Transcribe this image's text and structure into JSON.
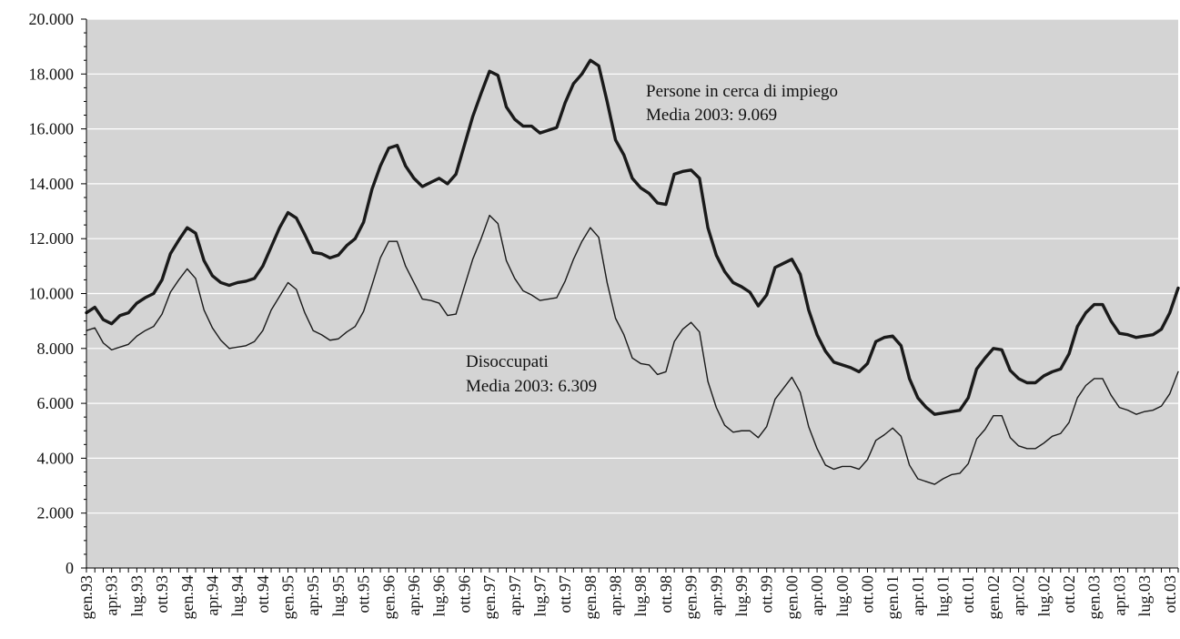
{
  "chart_data": {
    "type": "line",
    "title": "",
    "xlabel": "",
    "ylabel": "",
    "ylim": [
      0,
      20000
    ],
    "yticks": [
      0,
      2000,
      4000,
      6000,
      8000,
      10000,
      12000,
      14000,
      16000,
      18000,
      20000
    ],
    "ytick_labels": [
      "0",
      "2.000",
      "4.000",
      "6.000",
      "8.000",
      "10.000",
      "12.000",
      "14.000",
      "16.000",
      "18.000",
      "20.000"
    ],
    "grid": "horizontal",
    "background": "#d4d4d4",
    "x_tick_labels": [
      "gen.93",
      "apr.93",
      "lug.93",
      "ott.93",
      "gen.94",
      "apr.94",
      "lug.94",
      "ott.94",
      "gen.95",
      "apr.95",
      "lug.95",
      "ott.95",
      "gen.96",
      "apr.96",
      "lug.96",
      "ott.96",
      "gen.97",
      "apr.97",
      "lug.97",
      "ott.97",
      "gen.98",
      "apr.98",
      "lug.98",
      "ott.98",
      "gen.99",
      "apr.99",
      "lug.99",
      "ott.99",
      "gen.00",
      "apr.00",
      "lug.00",
      "ott.00",
      "gen.01",
      "apr.01",
      "lug.01",
      "ott.01",
      "gen.02",
      "apr.02",
      "lug.02",
      "ott.02",
      "gen.03",
      "apr.03",
      "lug.03",
      "ott.03"
    ],
    "series": [
      {
        "color": "#1a1a1a",
        "values": [
          9300,
          9500,
          9050,
          8900,
          9200,
          9300,
          9650,
          9850,
          10000,
          10500,
          11450,
          11950,
          12400,
          12200,
          11200,
          10650,
          10400,
          10300,
          10400,
          10450,
          10550,
          11000,
          11700,
          12400,
          12950,
          12750,
          12150,
          11500,
          11450,
          11300,
          11400,
          11750,
          12000,
          12600,
          13800,
          14650,
          15300,
          15400,
          14650,
          14200,
          13900,
          14050,
          14200,
          14000,
          14350,
          15400,
          16450,
          17300,
          18100,
          17950,
          16800,
          16350,
          16100,
          16100,
          15850,
          15950,
          16050,
          16950,
          17650,
          18000,
          18500,
          18300,
          17000,
          15600,
          15050,
          14200,
          13850,
          13650,
          13300,
          13250,
          14350,
          14450,
          14500,
          14200,
          12400,
          11400,
          10800,
          10400,
          10250,
          10050,
          9550,
          9950,
          10950,
          11100,
          11250,
          10700,
          9400,
          8500,
          7900,
          7500,
          7400,
          7300,
          7150,
          7450,
          8250,
          8400,
          8450,
          8100,
          6900,
          6200,
          5850,
          5600,
          5650,
          5700,
          5750,
          6200,
          7250,
          7650,
          8000,
          7950,
          7200,
          6900,
          6750,
          6750,
          7000,
          7150,
          7250,
          7800,
          8800,
          9300,
          9600,
          9600,
          9000,
          8550,
          8500,
          8400,
          8450,
          8500,
          8700,
          9300,
          10200
        ]
      },
      {
        "color": "#1a1a1a",
        "values": [
          8650,
          8750,
          8200,
          7950,
          8050,
          8150,
          8450,
          8650,
          8800,
          9250,
          10050,
          10500,
          10900,
          10550,
          9400,
          8750,
          8300,
          8000,
          8050,
          8100,
          8250,
          8650,
          9400,
          9900,
          10400,
          10150,
          9300,
          8650,
          8500,
          8300,
          8350,
          8600,
          8800,
          9350,
          10300,
          11300,
          11900,
          11900,
          11000,
          10400,
          9800,
          9750,
          9650,
          9200,
          9250,
          10250,
          11250,
          12000,
          12850,
          12550,
          11200,
          10550,
          10100,
          9950,
          9750,
          9800,
          9850,
          10450,
          11250,
          11900,
          12400,
          12050,
          10400,
          9100,
          8500,
          7650,
          7450,
          7400,
          7050,
          7150,
          8250,
          8700,
          8950,
          8600,
          6800,
          5850,
          5200,
          4950,
          5000,
          5000,
          4750,
          5150,
          6150,
          6550,
          6950,
          6400,
          5150,
          4350,
          3750,
          3600,
          3700,
          3700,
          3600,
          3950,
          4650,
          4850,
          5100,
          4800,
          3750,
          3250,
          3150,
          3050,
          3250,
          3400,
          3450,
          3800,
          4700,
          5050,
          5550,
          5550,
          4750,
          4450,
          4350,
          4350,
          4550,
          4800,
          4900,
          5300,
          6200,
          6650,
          6900,
          6900,
          6300,
          5850,
          5750,
          5600,
          5700,
          5750,
          5900,
          6350,
          7150
        ]
      }
    ],
    "annotations": [
      {
        "lines": [
          "Persone in cerca di impiego",
          "Media 2003: 9.069"
        ]
      },
      {
        "lines": [
          "Disoccupati",
          "Media 2003: 6.309"
        ]
      }
    ]
  }
}
